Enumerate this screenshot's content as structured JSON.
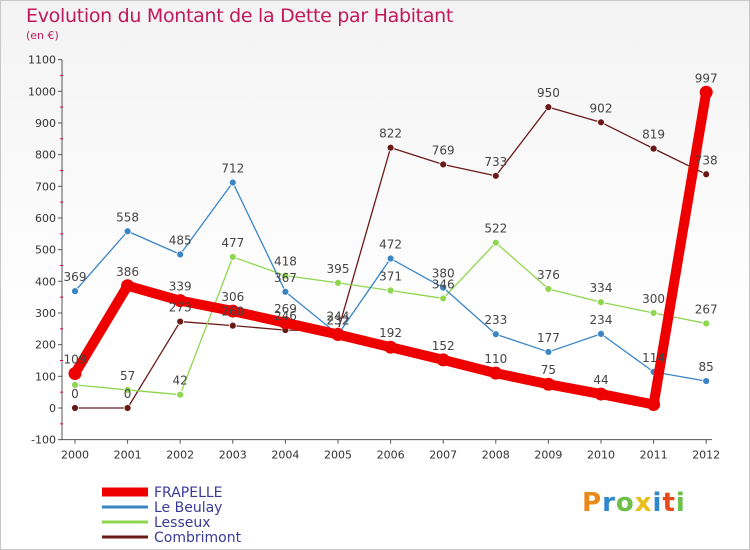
{
  "title": "Evolution du Montant de la Dette par Habitant",
  "unit_label": "(en €)",
  "brand": "Proxiti",
  "colors": {
    "title": "#c2185b",
    "axis": "#555555",
    "tick_marks": "#e0005a"
  },
  "chart_data": {
    "type": "line",
    "x": [
      "2000",
      "2001",
      "2002",
      "2003",
      "2004",
      "2005",
      "2006",
      "2007",
      "2008",
      "2009",
      "2010",
      "2011",
      "2012"
    ],
    "yticks": [
      "-100",
      "0",
      "100",
      "200",
      "300",
      "400",
      "500",
      "600",
      "700",
      "800",
      "900",
      "1000",
      "1100"
    ],
    "ylim": [
      -100,
      1100
    ],
    "grid": false,
    "legend_position": "bottom-left",
    "series": [
      {
        "name": "FRAPELLE",
        "color": "#ee0000",
        "values": [
          109,
          386,
          339,
          306,
          269,
          232,
          192,
          152,
          110,
          75,
          44,
          11,
          997
        ],
        "labels": [
          "109",
          "386",
          "339",
          "306",
          "269",
          "232",
          "192",
          "152",
          "110",
          "75",
          "44",
          "",
          "997"
        ]
      },
      {
        "name": "Le Beulay",
        "color": "#3a85c6",
        "values": [
          369,
          558,
          485,
          712,
          367,
          232,
          472,
          380,
          233,
          177,
          234,
          114,
          85
        ],
        "labels": [
          "369",
          "558",
          "485",
          "712",
          "367",
          "232",
          "472",
          "380",
          "233",
          "177",
          "234",
          "114",
          "85"
        ]
      },
      {
        "name": "Lesseux",
        "color": "#8fd650",
        "values": [
          73,
          57,
          42,
          477,
          418,
          395,
          371,
          346,
          522,
          376,
          334,
          300,
          267
        ],
        "labels": [
          "",
          "57",
          "42",
          "477",
          "418",
          "395",
          "371",
          "346",
          "522",
          "376",
          "334",
          "300",
          "267"
        ]
      },
      {
        "name": "Combrimont",
        "color": "#6b1a1a",
        "values": [
          0,
          0,
          273,
          260,
          246,
          244,
          822,
          769,
          733,
          950,
          902,
          819,
          738
        ],
        "labels": [
          "0",
          "0",
          "273",
          "260",
          "246",
          "244",
          "822",
          "769",
          "733",
          "950",
          "902",
          "819",
          "738"
        ]
      }
    ]
  }
}
